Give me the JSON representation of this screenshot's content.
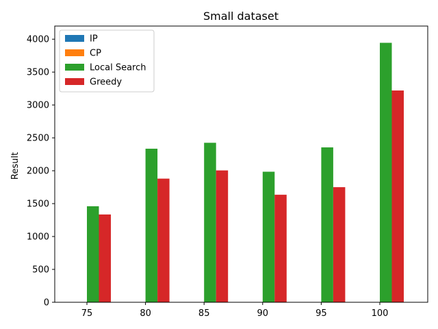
{
  "chart_data": {
    "type": "bar",
    "title": "Small dataset",
    "xlabel": "",
    "ylabel": "Result",
    "categories": [
      "75",
      "80",
      "85",
      "90",
      "95",
      "100"
    ],
    "ylim": [
      0,
      4200
    ],
    "yticks": [
      0,
      500,
      1000,
      1500,
      2000,
      2500,
      3000,
      3500,
      4000
    ],
    "legend_position": "top-left",
    "grid": false,
    "series": [
      {
        "name": "IP",
        "color": "#1f77b4",
        "values": [
          0,
          0,
          0,
          0,
          0,
          0
        ]
      },
      {
        "name": "CP",
        "color": "#ff7f0e",
        "values": [
          0,
          0,
          0,
          0,
          0,
          0
        ]
      },
      {
        "name": "Local Search",
        "color": "#2ca02c",
        "values": [
          1460,
          2335,
          2425,
          1985,
          2355,
          3945
        ]
      },
      {
        "name": "Greedy",
        "color": "#d62728",
        "values": [
          1335,
          1880,
          2005,
          1635,
          1750,
          3220
        ]
      }
    ]
  }
}
